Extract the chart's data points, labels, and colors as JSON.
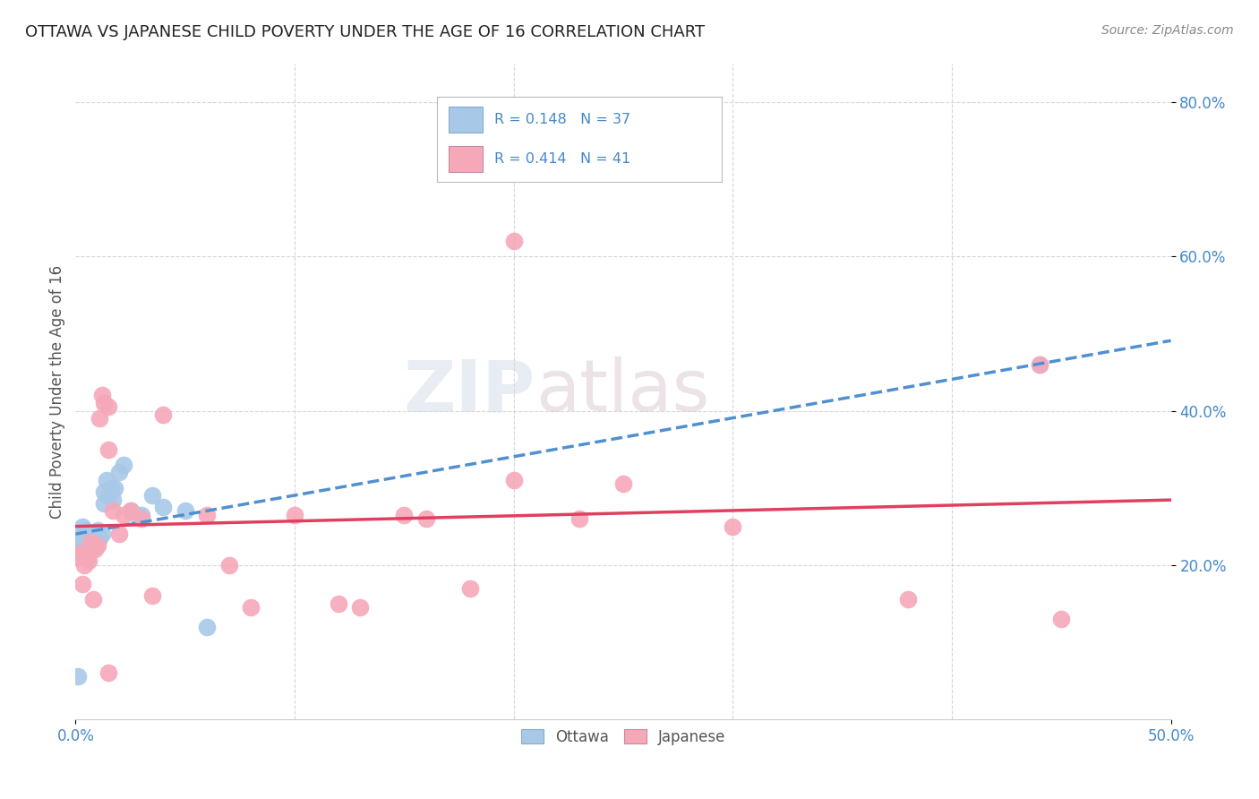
{
  "title": "OTTAWA VS JAPANESE CHILD POVERTY UNDER THE AGE OF 16 CORRELATION CHART",
  "source": "Source: ZipAtlas.com",
  "ylabel": "Child Poverty Under the Age of 16",
  "xlim": [
    0.0,
    0.5
  ],
  "ylim": [
    0.0,
    0.85
  ],
  "xticks_major": [
    0.0,
    0.5
  ],
  "xticks_minor": [
    0.1,
    0.2,
    0.3,
    0.4
  ],
  "yticks": [
    0.2,
    0.4,
    0.6,
    0.8
  ],
  "xtick_labels_major": [
    "0.0%",
    "50.0%"
  ],
  "ytick_labels": [
    "20.0%",
    "40.0%",
    "60.0%",
    "80.0%"
  ],
  "background_color": "#ffffff",
  "watermark_zip": "ZIP",
  "watermark_atlas": "atlas",
  "ottawa_color": "#a8c8e8",
  "japanese_color": "#f5a8b8",
  "ottawa_line_color": "#5090d0",
  "japanese_line_color": "#e04060",
  "grid_color": "#cccccc",
  "title_color": "#222222",
  "axis_tick_color": "#4488cc",
  "legend_label_color": "#4488cc",
  "bottom_legend_color": "#555555",
  "ottawa_x": [
    0.001,
    0.002,
    0.002,
    0.003,
    0.003,
    0.004,
    0.004,
    0.005,
    0.005,
    0.006,
    0.006,
    0.007,
    0.007,
    0.008,
    0.009,
    0.01,
    0.01,
    0.011,
    0.012,
    0.013,
    0.013,
    0.014,
    0.015,
    0.016,
    0.017,
    0.018,
    0.02,
    0.022,
    0.025,
    0.028,
    0.03,
    0.035,
    0.04,
    0.05,
    0.06,
    0.44,
    0.005
  ],
  "ottawa_y": [
    0.055,
    0.225,
    0.23,
    0.235,
    0.25,
    0.235,
    0.245,
    0.21,
    0.23,
    0.225,
    0.24,
    0.22,
    0.235,
    0.225,
    0.23,
    0.23,
    0.245,
    0.235,
    0.24,
    0.28,
    0.295,
    0.31,
    0.29,
    0.3,
    0.285,
    0.3,
    0.32,
    0.33,
    0.27,
    0.265,
    0.265,
    0.29,
    0.275,
    0.27,
    0.12,
    0.46,
    0.21
  ],
  "japanese_x": [
    0.001,
    0.002,
    0.003,
    0.003,
    0.004,
    0.005,
    0.006,
    0.007,
    0.008,
    0.009,
    0.01,
    0.011,
    0.012,
    0.013,
    0.015,
    0.015,
    0.017,
    0.02,
    0.022,
    0.025,
    0.03,
    0.035,
    0.04,
    0.06,
    0.07,
    0.08,
    0.1,
    0.13,
    0.15,
    0.16,
    0.18,
    0.2,
    0.23,
    0.25,
    0.3,
    0.38,
    0.44,
    0.45,
    0.2,
    0.12,
    0.015
  ],
  "japanese_y": [
    0.21,
    0.215,
    0.175,
    0.215,
    0.2,
    0.215,
    0.205,
    0.23,
    0.155,
    0.22,
    0.225,
    0.39,
    0.42,
    0.41,
    0.405,
    0.35,
    0.27,
    0.24,
    0.265,
    0.27,
    0.26,
    0.16,
    0.395,
    0.265,
    0.2,
    0.145,
    0.265,
    0.145,
    0.265,
    0.26,
    0.17,
    0.62,
    0.26,
    0.305,
    0.25,
    0.155,
    0.46,
    0.13,
    0.31,
    0.15,
    0.06
  ]
}
